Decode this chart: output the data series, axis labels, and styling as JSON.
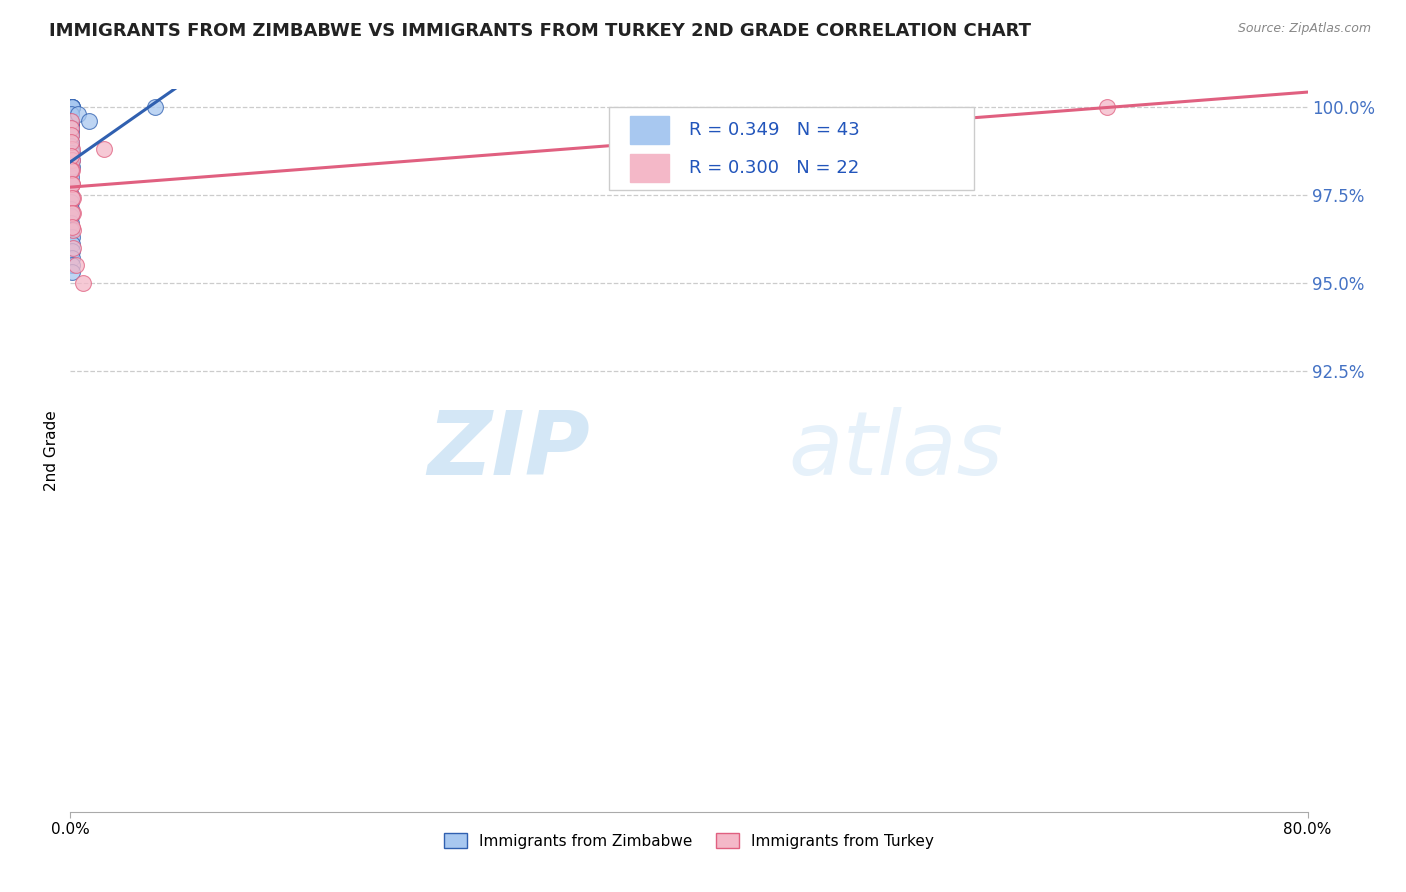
{
  "title": "IMMIGRANTS FROM ZIMBABWE VS IMMIGRANTS FROM TURKEY 2ND GRADE CORRELATION CHART",
  "source": "Source: ZipAtlas.com",
  "ylabel": "2nd Grade",
  "xlim": [
    0.0,
    80.0
  ],
  "ylim": [
    80.0,
    100.5
  ],
  "yticks": [
    92.5,
    95.0,
    97.5,
    100.0
  ],
  "ytick_labels": [
    "92.5%",
    "95.0%",
    "97.5%",
    "100.0%"
  ],
  "legend1_label": "Immigrants from Zimbabwe",
  "legend2_label": "Immigrants from Turkey",
  "r1": 0.349,
  "n1": 43,
  "r2": 0.3,
  "n2": 22,
  "color_zim": "#a8c8f0",
  "color_tur": "#f4b8c8",
  "color_zim_line": "#3060b0",
  "color_tur_line": "#e06080",
  "watermark_zip": "ZIP",
  "watermark_atlas": "atlas",
  "zimbabwe_x": [
    0.02,
    0.03,
    0.04,
    0.05,
    0.06,
    0.07,
    0.08,
    0.09,
    0.1,
    0.11,
    0.02,
    0.03,
    0.04,
    0.05,
    0.06,
    0.07,
    0.02,
    0.03,
    0.04,
    0.05,
    0.06,
    0.07,
    0.08,
    0.09,
    0.1,
    0.02,
    0.03,
    0.04,
    0.05,
    0.06,
    0.07,
    0.08,
    0.09,
    0.1,
    0.11,
    0.12,
    0.13,
    0.02,
    0.03,
    0.04,
    0.5,
    1.2,
    5.5
  ],
  "zimbabwe_y": [
    100.0,
    100.0,
    100.0,
    100.0,
    100.0,
    100.0,
    100.0,
    100.0,
    100.0,
    100.0,
    99.5,
    99.5,
    99.3,
    99.0,
    98.8,
    98.6,
    98.4,
    98.2,
    98.0,
    97.8,
    99.2,
    98.9,
    98.7,
    98.5,
    98.3,
    97.5,
    97.3,
    97.1,
    96.9,
    96.7,
    96.5,
    96.3,
    96.1,
    95.9,
    95.7,
    95.5,
    95.3,
    99.8,
    99.6,
    99.4,
    99.8,
    99.6,
    100.0
  ],
  "turkey_x": [
    0.02,
    0.04,
    0.06,
    0.08,
    0.1,
    0.12,
    0.14,
    0.16,
    0.18,
    0.2,
    0.02,
    0.04,
    0.06,
    0.08,
    0.1,
    0.12,
    0.14,
    0.16,
    0.4,
    0.8,
    2.2,
    67.0
  ],
  "turkey_y": [
    99.6,
    99.4,
    99.2,
    98.8,
    98.5,
    98.2,
    97.8,
    97.4,
    97.0,
    96.5,
    99.0,
    98.6,
    98.2,
    97.8,
    97.4,
    97.0,
    96.6,
    96.0,
    95.5,
    95.0,
    98.8,
    100.0
  ]
}
